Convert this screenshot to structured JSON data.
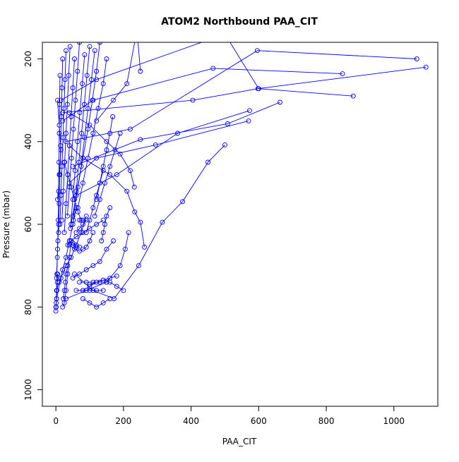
{
  "chart_data": {
    "type": "line",
    "title": "ATOM2 Northbound PAA_CIT",
    "xlabel": "PAA_CIT",
    "ylabel": "Pressure (mbar)",
    "xlim": [
      -40,
      1130
    ],
    "ylim": [
      1040,
      160
    ],
    "y_reversed": true,
    "x_ticks": [
      0,
      200,
      400,
      600,
      800,
      1000
    ],
    "y_ticks": [
      200,
      400,
      600,
      800,
      1000
    ],
    "x_tick_labels": [
      "0",
      "200",
      "400",
      "600",
      "800",
      "1000"
    ],
    "y_tick_labels": [
      "200",
      "400",
      "600",
      "800",
      "1000"
    ],
    "grid": false,
    "legend": "none",
    "marker": "open-circle",
    "color": "#0000ff",
    "series": [
      {
        "x": [
          1095,
          598,
          405,
          20
        ],
        "y": [
          220,
          272,
          300,
          330
        ]
      },
      {
        "x": [
          1068,
          596,
          220,
          30
        ],
        "y": [
          200,
          180,
          370,
          400
        ]
      },
      {
        "x": [
          848,
          465,
          110,
          20
        ],
        "y": [
          236,
          223,
          300,
          350
        ]
      },
      {
        "x": [
          880,
          600,
          500,
          120,
          15
        ],
        "y": [
          290,
          272,
          140,
          250,
          300
        ]
      },
      {
        "x": [
          663,
          508,
          250,
          50
        ],
        "y": [
          305,
          357,
          395,
          460
        ]
      },
      {
        "x": [
          570,
          295,
          120,
          40
        ],
        "y": [
          350,
          408,
          440,
          500
        ]
      },
      {
        "x": [
          573,
          360,
          180,
          60
        ],
        "y": [
          325,
          380,
          480,
          530
        ]
      },
      {
        "x": [
          500,
          450,
          375,
          315,
          245,
          172,
          110,
          55
        ],
        "y": [
          408,
          450,
          545,
          595,
          700,
          780,
          760,
          720
        ]
      },
      {
        "x": [
          262,
          250,
          233,
          210,
          160,
          80,
          40
        ],
        "y": [
          655,
          595,
          570,
          520,
          480,
          440,
          410
        ]
      },
      {
        "x": [
          232,
          220,
          190,
          150,
          100,
          40
        ],
        "y": [
          510,
          470,
          430,
          400,
          360,
          330
        ]
      },
      {
        "x": [
          215,
          205,
          190,
          150,
          90,
          30
        ],
        "y": [
          620,
          660,
          700,
          740,
          760,
          780
        ]
      },
      {
        "x": [
          250,
          240,
          210,
          170,
          120
        ],
        "y": [
          230,
          130,
          260,
          300,
          350
        ]
      },
      {
        "x": [
          168,
          160,
          150,
          140,
          130,
          120
        ],
        "y": [
          340,
          380,
          420,
          460,
          500,
          540
        ]
      },
      {
        "x": [
          150,
          140,
          125,
          110,
          95,
          80,
          65
        ],
        "y": [
          200,
          260,
          320,
          380,
          440,
          500,
          560
        ]
      },
      {
        "x": [
          130,
          120,
          108,
          95,
          80,
          65,
          50
        ],
        "y": [
          160,
          230,
          300,
          370,
          440,
          510,
          580
        ]
      },
      {
        "x": [
          115,
          105,
          95,
          85,
          75,
          60,
          45
        ],
        "y": [
          180,
          250,
          320,
          390,
          460,
          530,
          600
        ]
      },
      {
        "x": [
          100,
          92,
          84,
          76,
          68,
          60,
          52
        ],
        "y": [
          170,
          240,
          310,
          380,
          450,
          520,
          590
        ]
      },
      {
        "x": [
          85,
          78,
          71,
          64,
          57,
          50,
          43
        ],
        "y": [
          190,
          260,
          330,
          400,
          470,
          540,
          610
        ]
      },
      {
        "x": [
          70,
          64,
          58,
          52,
          46,
          40,
          34
        ],
        "y": [
          160,
          230,
          300,
          370,
          440,
          510,
          580
        ]
      },
      {
        "x": [
          55,
          50,
          45,
          40,
          35,
          30,
          25
        ],
        "y": [
          200,
          270,
          340,
          410,
          480,
          550,
          620
        ]
      },
      {
        "x": [
          42,
          38,
          34,
          30,
          26,
          22,
          18
        ],
        "y": [
          170,
          240,
          310,
          380,
          450,
          520,
          590
        ]
      },
      {
        "x": [
          30,
          27,
          24,
          21,
          18,
          15,
          12
        ],
        "y": [
          180,
          250,
          320,
          390,
          460,
          530,
          600
        ]
      },
      {
        "x": [
          20,
          18,
          16,
          14,
          12,
          10,
          8
        ],
        "y": [
          200,
          270,
          340,
          410,
          480,
          550,
          620
        ]
      },
      {
        "x": [
          12,
          11,
          10,
          9,
          8,
          7,
          5,
          2
        ],
        "y": [
          240,
          310,
          380,
          450,
          520,
          590,
          660,
          730
        ]
      },
      {
        "x": [
          60,
          50,
          40,
          30,
          20,
          10,
          2
        ],
        "y": [
          560,
          600,
          640,
          680,
          710,
          740,
          760
        ]
      },
      {
        "x": [
          90,
          75,
          60,
          45,
          30,
          15,
          2
        ],
        "y": [
          580,
          620,
          650,
          680,
          700,
          730,
          780
        ]
      },
      {
        "x": [
          110,
          100,
          90,
          80,
          70,
          55,
          40
        ],
        "y": [
          620,
          640,
          655,
          660,
          665,
          660,
          650
        ]
      },
      {
        "x": [
          140,
          120,
          100,
          80,
          60,
          45,
          35
        ],
        "y": [
          590,
          600,
          610,
          620,
          630,
          640,
          650
        ]
      },
      {
        "x": [
          170,
          150,
          130,
          110,
          90,
          70,
          50
        ],
        "y": [
          640,
          660,
          690,
          700,
          710,
          720,
          730
        ]
      },
      {
        "x": [
          200,
          180,
          160,
          140,
          120,
          100,
          80
        ],
        "y": [
          760,
          750,
          740,
          735,
          740,
          750,
          760
        ]
      },
      {
        "x": [
          160,
          140,
          120,
          100,
          80
        ],
        "y": [
          780,
          790,
          800,
          790,
          780
        ]
      },
      {
        "x": [
          150,
          130,
          110,
          90,
          70
        ],
        "y": [
          740,
          740,
          740,
          740,
          740
        ]
      },
      {
        "x": [
          140,
          120,
          100,
          80,
          60
        ],
        "y": [
          760,
          760,
          760,
          760,
          760
        ]
      },
      {
        "x": [
          180,
          160,
          140,
          120,
          100
        ],
        "y": [
          725,
          730,
          735,
          740,
          745
        ]
      },
      {
        "x": [
          45,
          40,
          35,
          30,
          25,
          20
        ],
        "y": [
          640,
          680,
          720,
          760,
          790,
          800
        ]
      },
      {
        "x": [
          35,
          30,
          28,
          25,
          22
        ],
        "y": [
          700,
          720,
          740,
          760,
          780
        ]
      },
      {
        "x": [
          160,
          150,
          145,
          140,
          135
        ],
        "y": [
          560,
          580,
          600,
          620,
          640
        ]
      },
      {
        "x": [
          140,
          130,
          120,
          110,
          100,
          90
        ],
        "y": [
          470,
          500,
          530,
          560,
          590,
          620
        ]
      },
      {
        "x": [
          190,
          175,
          160,
          145,
          130,
          115
        ],
        "y": [
          380,
          420,
          460,
          500,
          540,
          580
        ]
      },
      {
        "x": [
          5,
          4,
          3,
          2,
          1,
          0,
          0
        ],
        "y": [
          720,
          740,
          760,
          780,
          790,
          800,
          810
        ]
      },
      {
        "x": [
          8,
          6,
          4,
          3,
          2,
          1
        ],
        "y": [
          600,
          640,
          680,
          720,
          760,
          800
        ]
      },
      {
        "x": [
          5,
          10,
          15,
          10,
          5
        ],
        "y": [
          300,
          360,
          420,
          480,
          540
        ]
      },
      {
        "x": [
          25,
          35,
          45,
          55,
          65,
          75
        ],
        "y": [
          450,
          480,
          510,
          540,
          570,
          590
        ]
      },
      {
        "x": [
          70,
          80,
          90,
          80,
          70,
          60
        ],
        "y": [
          590,
          590,
          590,
          600,
          610,
          620
        ]
      },
      {
        "x": [
          40,
          50,
          60,
          70,
          60,
          50
        ],
        "y": [
          640,
          650,
          655,
          655,
          650,
          645
        ]
      }
    ]
  }
}
